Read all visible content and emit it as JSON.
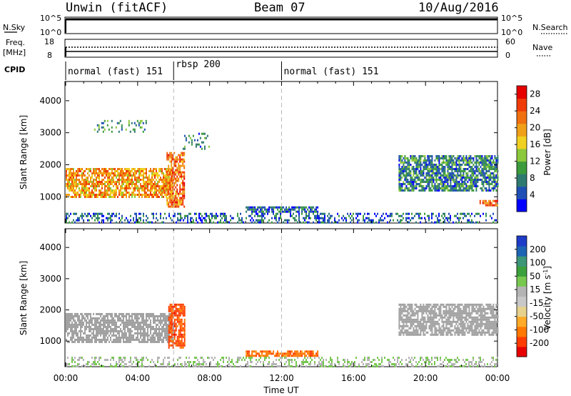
{
  "header": {
    "station": "Unwin (fitACF)",
    "beam": "Beam 07",
    "date": "10/Aug/2016"
  },
  "side_labels": {
    "nsky": "N.Sky",
    "nsearch": "N.Search",
    "freq_line1": "Freq.",
    "freq_line2": "[MHz]",
    "nave": "Nave",
    "cpid": "CPID"
  },
  "small_axes": {
    "nsky_ticks": [
      "10^5",
      "10^0"
    ],
    "nsearch_ticks": [
      "10^5",
      "10^0"
    ],
    "freq_ticks": [
      "18",
      "8"
    ],
    "nave_ticks": [
      "60",
      "0"
    ]
  },
  "cpid_segments": [
    {
      "label": "normal (fast) 151",
      "start_hour": 0,
      "end_hour": 6
    },
    {
      "label": "rbsp 200",
      "start_hour": 6,
      "end_hour": 12
    },
    {
      "label": "normal (fast) 151",
      "start_hour": 12,
      "end_hour": 24
    }
  ],
  "colors": {
    "power_scale": [
      "#0000ff",
      "#1f4fb4",
      "#2f7a70",
      "#3c9b3c",
      "#8cc83c",
      "#f0d020",
      "#f0a018",
      "#f07010",
      "#f03c08",
      "#e60000"
    ],
    "velocity_scale": [
      "#e60000",
      "#ff3c00",
      "#ff7800",
      "#ffaa28",
      "#e6d28c",
      "#c8c8c8",
      "#b4b4b4",
      "#78c850",
      "#3ca03c",
      "#3c9678",
      "#1e64b4",
      "#1e3cc8"
    ],
    "ground_scatter": "#a0a0a0"
  },
  "chart_data": [
    {
      "type": "heatmap",
      "name": "power_panel",
      "xlabel": "",
      "ylabel": "Slant Range [km]",
      "x_ticks": [
        "00:00",
        "04:00",
        "08:00",
        "12:00",
        "16:00",
        "20:00",
        "00:00"
      ],
      "xlim_hours": [
        0,
        24
      ],
      "ylim_km": [
        180,
        4600
      ],
      "y_ticks": [
        1000,
        2000,
        3000,
        4000
      ],
      "colorbar": {
        "label": "Power [dB]",
        "ticks": [
          4,
          8,
          12,
          16,
          20,
          24,
          28
        ],
        "range": [
          0,
          30
        ]
      },
      "echo_regions": [
        {
          "t_start": 0.0,
          "t_end": 6.0,
          "r_low": 1000,
          "r_high": 1900,
          "value": 20,
          "desc": "F-region band"
        },
        {
          "t_start": 5.6,
          "t_end": 6.6,
          "r_low": 700,
          "r_high": 2400,
          "value": 22,
          "desc": "rising band near 06:00"
        },
        {
          "t_start": 1.5,
          "t_end": 4.5,
          "r_low": 3000,
          "r_high": 3400,
          "value": 8,
          "desc": "sparse high echoes"
        },
        {
          "t_start": 6.5,
          "t_end": 8.0,
          "r_low": 2500,
          "r_high": 3000,
          "value": 8,
          "desc": "patchy echoes"
        },
        {
          "t_start": 10.0,
          "t_end": 14.0,
          "r_low": 500,
          "r_high": 700,
          "value": 6,
          "desc": "near-range band"
        },
        {
          "t_start": 18.5,
          "t_end": 24.0,
          "r_low": 1200,
          "r_high": 2300,
          "value": 8,
          "desc": "evening band"
        },
        {
          "t_start": 23.0,
          "t_end": 24.0,
          "r_low": 700,
          "r_high": 900,
          "value": 24,
          "desc": "late strong echoes"
        },
        {
          "t_start": 0.0,
          "t_end": 24.0,
          "r_low": 200,
          "r_high": 500,
          "value": 6,
          "desc": "near-range clutter"
        }
      ]
    },
    {
      "type": "heatmap",
      "name": "velocity_panel",
      "xlabel": "Time UT",
      "ylabel": "Slant Range [km]",
      "x_ticks": [
        "00:00",
        "04:00",
        "08:00",
        "12:00",
        "16:00",
        "20:00",
        "00:00"
      ],
      "xlim_hours": [
        0,
        24
      ],
      "ylim_km": [
        180,
        4600
      ],
      "y_ticks": [
        1000,
        2000,
        3000,
        4000
      ],
      "colorbar": {
        "label": "Velocity [m s^-1]",
        "ticks": [
          200,
          100,
          50,
          15,
          -15,
          -50,
          -100,
          -200
        ],
        "range": [
          -250,
          250
        ]
      },
      "echo_regions": [
        {
          "t_start": 0.0,
          "t_end": 6.0,
          "r_low": 1000,
          "r_high": 1900,
          "value": 0,
          "desc": "ground scatter band"
        },
        {
          "t_start": 5.7,
          "t_end": 6.6,
          "r_low": 800,
          "r_high": 2200,
          "value": -180,
          "desc": "strong negative velocity"
        },
        {
          "t_start": 10.0,
          "t_end": 14.0,
          "r_low": 500,
          "r_high": 700,
          "value": -150,
          "desc": "near-range flow"
        },
        {
          "t_start": 18.5,
          "t_end": 24.0,
          "r_low": 1200,
          "r_high": 2200,
          "value": 0,
          "desc": "evening ground scatter"
        },
        {
          "t_start": 0.0,
          "t_end": 24.0,
          "r_low": 200,
          "r_high": 500,
          "value": 40,
          "desc": "near-range clutter"
        }
      ]
    }
  ]
}
